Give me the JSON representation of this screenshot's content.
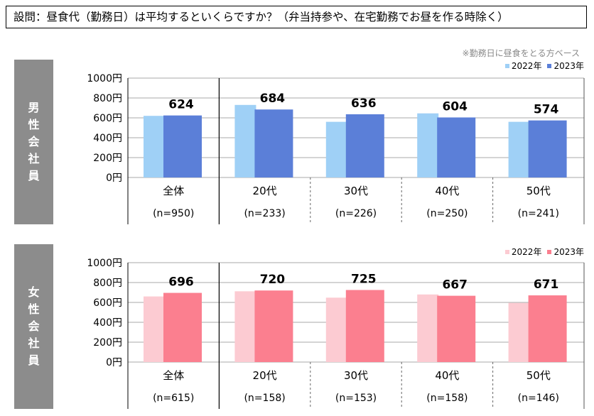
{
  "question": "設問：昼食代（勤務日）は平均するといくらですか？（弁当持参や、在宅勤務でお昼を作る時除く）",
  "note": "※勤務日に昼食をとる方ベース",
  "colors": {
    "male_2022": "#9fd0f6",
    "male_2023": "#5b7fd8",
    "female_2022": "#fccbd2",
    "female_2023": "#fb7f8f",
    "grid": "#aaaaaa",
    "side_label_bg": "#8c8c8c"
  },
  "chart_data": [
    {
      "type": "bar",
      "panel_label": [
        "男",
        "性",
        "会",
        "社",
        "員"
      ],
      "categories": [
        "全体",
        "20代",
        "30代",
        "40代",
        "50代"
      ],
      "sample_sizes": [
        "(n=950)",
        "(n=233)",
        "(n=226)",
        "(n=250)",
        "(n=241)"
      ],
      "series": [
        {
          "name": "2022年",
          "values": [
            620,
            730,
            560,
            645,
            560
          ]
        },
        {
          "name": "2023年",
          "values": [
            624,
            684,
            636,
            604,
            574
          ]
        }
      ],
      "data_labels": [
        "624",
        "684",
        "636",
        "604",
        "574"
      ],
      "ylim": [
        0,
        1000
      ],
      "yticks": [
        "0円",
        "200円",
        "400円",
        "600円",
        "800円",
        "1000円"
      ],
      "ytick_values": [
        0,
        200,
        400,
        600,
        800,
        1000
      ],
      "legend": "top-right"
    },
    {
      "type": "bar",
      "panel_label": [
        "女",
        "性",
        "会",
        "社",
        "員"
      ],
      "categories": [
        "全体",
        "20代",
        "30代",
        "40代",
        "50代"
      ],
      "sample_sizes": [
        "(n=615)",
        "(n=158)",
        "(n=153)",
        "(n=158)",
        "(n=146)"
      ],
      "series": [
        {
          "name": "2022年",
          "values": [
            660,
            712,
            648,
            680,
            595
          ]
        },
        {
          "name": "2023年",
          "values": [
            696,
            720,
            725,
            667,
            671
          ]
        }
      ],
      "data_labels": [
        "696",
        "720",
        "725",
        "667",
        "671"
      ],
      "ylim": [
        0,
        1000
      ],
      "yticks": [
        "0円",
        "200円",
        "400円",
        "600円",
        "800円",
        "1000円"
      ],
      "ytick_values": [
        0,
        200,
        400,
        600,
        800,
        1000
      ],
      "legend": "top-right"
    }
  ]
}
